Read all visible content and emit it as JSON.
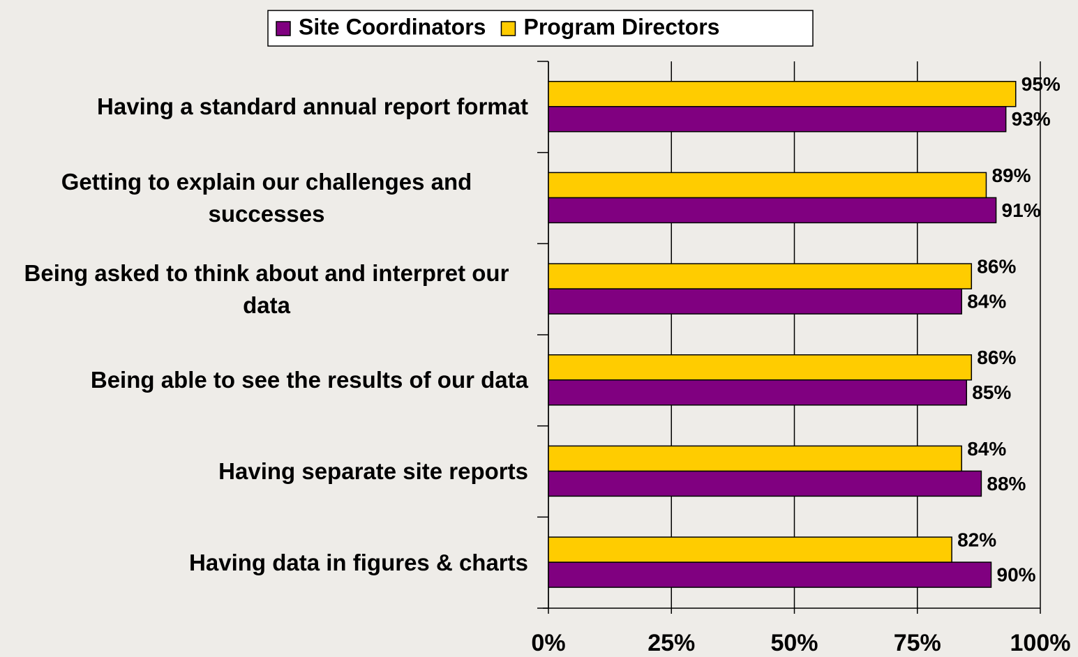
{
  "chart_data": {
    "type": "bar",
    "orientation": "horizontal",
    "categories": [
      "Having a standard annual report format",
      "Getting to explain our challenges and successes",
      "Being asked to think about and interpret our data",
      "Being able to see the results of our data",
      "Having separate site reports",
      "Having data in figures & charts"
    ],
    "series": [
      {
        "name": "Site Coordinators",
        "color": "#800080",
        "values": [
          93,
          91,
          84,
          85,
          88,
          90
        ],
        "value_labels": [
          "93%",
          "91%",
          "84%",
          "85%",
          "88%",
          "90%"
        ]
      },
      {
        "name": "Program Directors",
        "color": "#FFCC00",
        "values": [
          95,
          89,
          86,
          86,
          84,
          82
        ],
        "value_labels": [
          "95%",
          "89%",
          "86%",
          "86%",
          "84%",
          "82%"
        ]
      }
    ],
    "xlim": [
      0,
      100
    ],
    "xticks": [
      {
        "value": 0,
        "label": "0%"
      },
      {
        "value": 25,
        "label": "25%"
      },
      {
        "value": 50,
        "label": "50%"
      },
      {
        "value": 75,
        "label": "75%"
      },
      {
        "value": 100,
        "label": "100%"
      }
    ],
    "grid": true,
    "legend": "top"
  }
}
